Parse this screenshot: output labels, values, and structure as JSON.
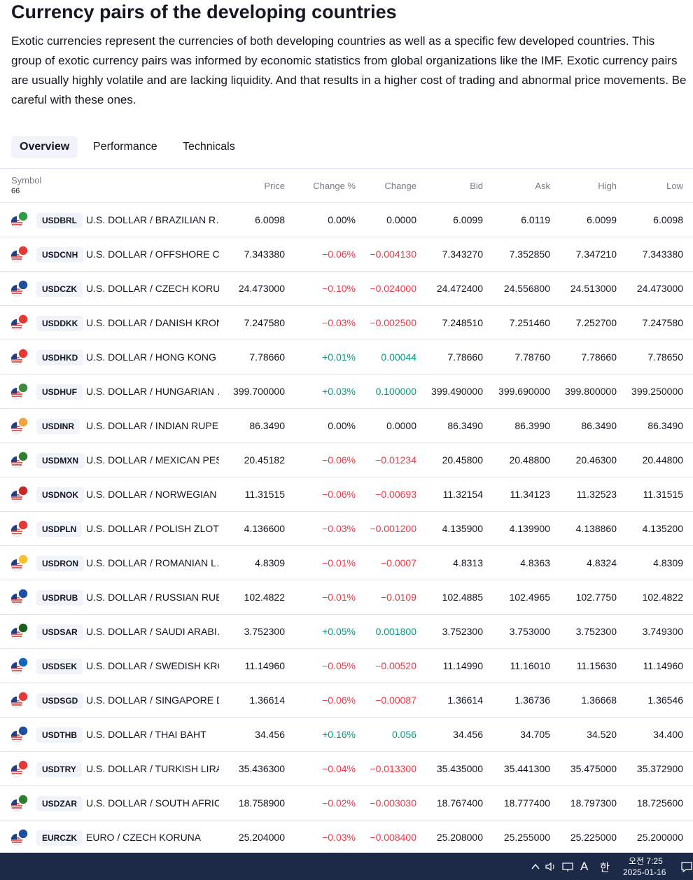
{
  "header": {
    "title": "Currency pairs of the developing countries",
    "description": "Exotic currencies represent the currencies of both developing countries as well as a specific few developed countries. This group of exotic currency pairs was informed by economic statistics from global organizations like the IMF. Exotic currency pairs are usually highly volatile and are lacking liquidity. And that results in a higher cost of trading and abnormal price movements. Be careful with these ones."
  },
  "tabs": [
    "Overview",
    "Performance",
    "Technicals"
  ],
  "table": {
    "symbol_header": "Symbol",
    "symbol_count": "66",
    "columns": [
      "Price",
      "Change %",
      "Change",
      "Bid",
      "Ask",
      "High",
      "Low"
    ],
    "rows": [
      [
        "USDBRL",
        "U.S. DOLLAR / BRAZILIAN R…",
        "6.0098",
        "0.00%",
        "0.0000",
        "6.0099",
        "6.0119",
        "6.0099",
        "6.0098"
      ],
      [
        "USDCNH",
        "U.S. DOLLAR / OFFSHORE C…",
        "7.343380",
        "−0.06%",
        "−0.004130",
        "7.343270",
        "7.352850",
        "7.347210",
        "7.343380"
      ],
      [
        "USDCZK",
        "U.S. DOLLAR / CZECH KORU…",
        "24.473000",
        "−0.10%",
        "−0.024000",
        "24.472400",
        "24.556800",
        "24.513000",
        "24.473000"
      ],
      [
        "USDDKK",
        "U.S. DOLLAR / DANISH KRONE",
        "7.247580",
        "−0.03%",
        "−0.002500",
        "7.248510",
        "7.251460",
        "7.252700",
        "7.247580"
      ],
      [
        "USDHKD",
        "U.S. DOLLAR / HONG KONG …",
        "7.78660",
        "+0.01%",
        "0.00044",
        "7.78660",
        "7.78760",
        "7.78660",
        "7.78650"
      ],
      [
        "USDHUF",
        "U.S. DOLLAR / HUNGARIAN …",
        "399.700000",
        "+0.03%",
        "0.100000",
        "399.490000",
        "399.690000",
        "399.800000",
        "399.250000"
      ],
      [
        "USDINR",
        "U.S. DOLLAR / INDIAN RUPEE",
        "86.3490",
        "0.00%",
        "0.0000",
        "86.3490",
        "86.3990",
        "86.3490",
        "86.3490"
      ],
      [
        "USDMXN",
        "U.S. DOLLAR / MEXICAN PESO",
        "20.45182",
        "−0.06%",
        "−0.01234",
        "20.45800",
        "20.48800",
        "20.46300",
        "20.44800"
      ],
      [
        "USDNOK",
        "U.S. DOLLAR / NORWEGIAN …",
        "11.31515",
        "−0.06%",
        "−0.00693",
        "11.32154",
        "11.34123",
        "11.32523",
        "11.31515"
      ],
      [
        "USDPLN",
        "U.S. DOLLAR / POLISH ZLOTY",
        "4.136600",
        "−0.03%",
        "−0.001200",
        "4.135900",
        "4.139900",
        "4.138860",
        "4.135200"
      ],
      [
        "USDRON",
        "U.S. DOLLAR / ROMANIAN L…",
        "4.8309",
        "−0.01%",
        "−0.0007",
        "4.8313",
        "4.8363",
        "4.8324",
        "4.8309"
      ],
      [
        "USDRUB",
        "U.S. DOLLAR / RUSSIAN RUB…",
        "102.4822",
        "−0.01%",
        "−0.0109",
        "102.4885",
        "102.4965",
        "102.7750",
        "102.4822"
      ],
      [
        "USDSAR",
        "U.S. DOLLAR / SAUDI ARABI…",
        "3.752300",
        "+0.05%",
        "0.001800",
        "3.752300",
        "3.753000",
        "3.752300",
        "3.749300"
      ],
      [
        "USDSEK",
        "U.S. DOLLAR / SWEDISH KRO…",
        "11.14960",
        "−0.05%",
        "−0.00520",
        "11.14990",
        "11.16010",
        "11.15630",
        "11.14960"
      ],
      [
        "USDSGD",
        "U.S. DOLLAR / SINGAPORE D…",
        "1.36614",
        "−0.06%",
        "−0.00087",
        "1.36614",
        "1.36736",
        "1.36668",
        "1.36546"
      ],
      [
        "USDTHB",
        "U.S. DOLLAR / THAI BAHT",
        "34.456",
        "+0.16%",
        "0.056",
        "34.456",
        "34.705",
        "34.520",
        "34.400"
      ],
      [
        "USDTRY",
        "U.S. DOLLAR / TURKISH LIRA",
        "35.436300",
        "−0.04%",
        "−0.013300",
        "35.435000",
        "35.441300",
        "35.475000",
        "35.372900"
      ],
      [
        "USDZAR",
        "U.S. DOLLAR / SOUTH AFRIC…",
        "18.758900",
        "−0.02%",
        "−0.003030",
        "18.767400",
        "18.777400",
        "18.797300",
        "18.725600"
      ],
      [
        "EURCZK",
        "EURO / CZECH KORUNA",
        "25.204000",
        "−0.03%",
        "−0.008400",
        "25.208000",
        "25.255000",
        "25.225000",
        "25.200000"
      ]
    ]
  },
  "taskbar": {
    "input_mode": "A",
    "ime": "한",
    "time": "오전 7:25",
    "date": "2025-01-16"
  }
}
